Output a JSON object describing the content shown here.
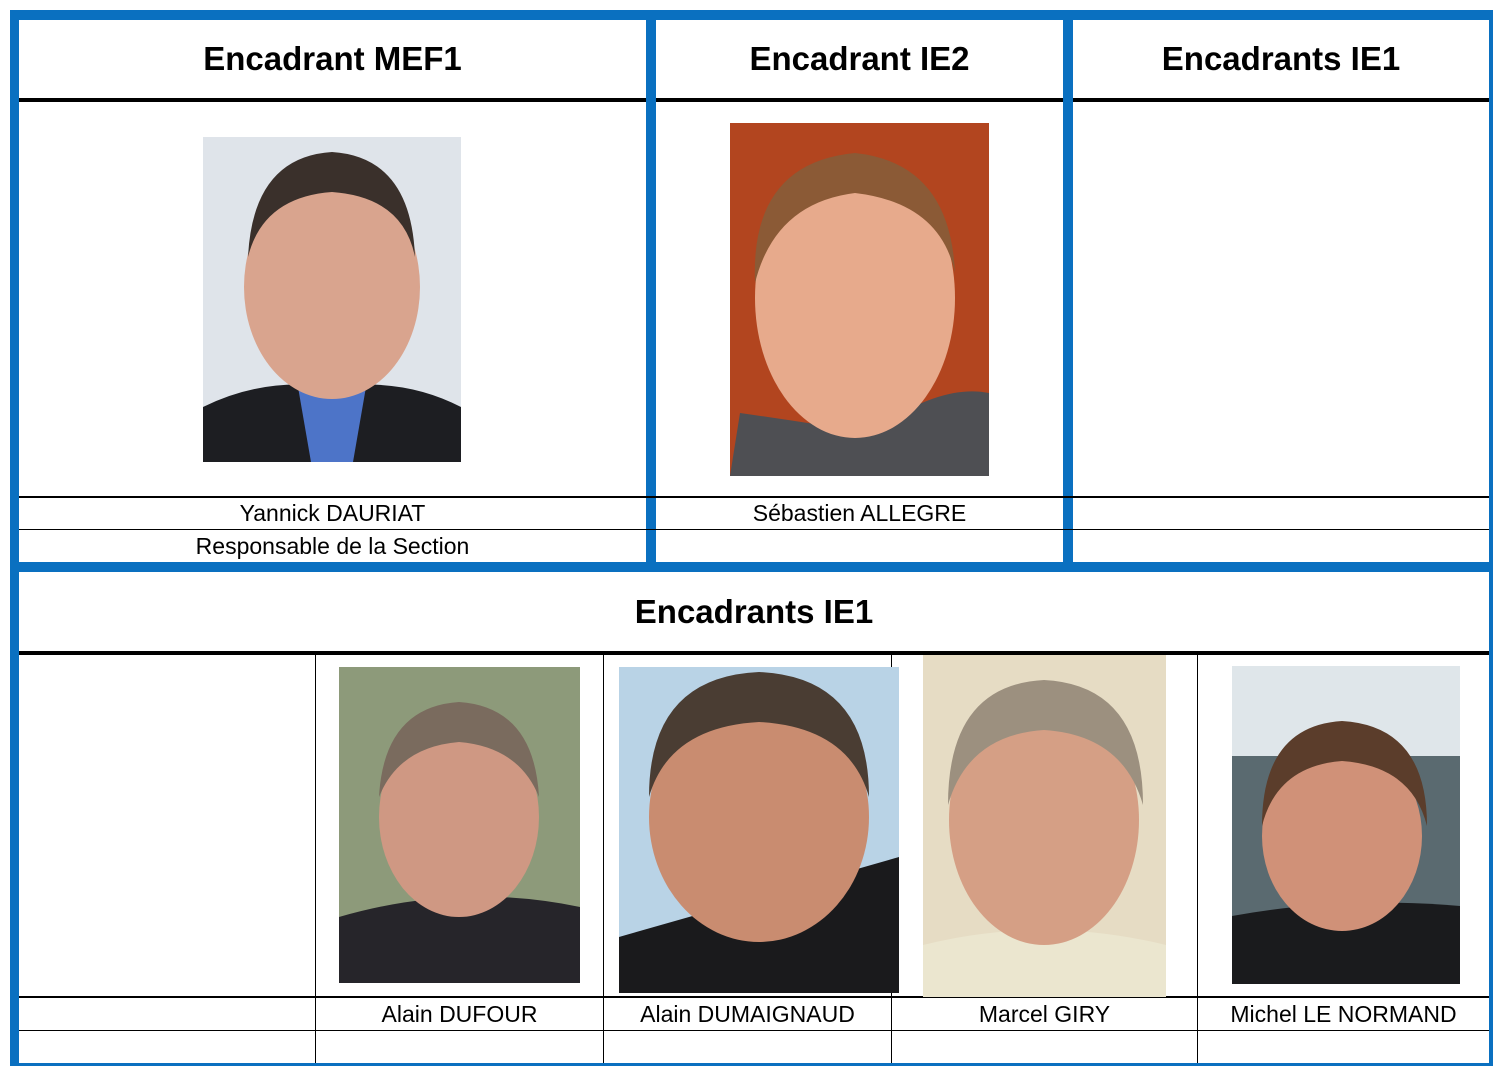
{
  "top": {
    "columns": [
      {
        "title": "Encadrant MEF1",
        "name": "Yannick DAURIAT",
        "role": "Responsable de la Section"
      },
      {
        "title": "Encadrant IE2",
        "name": "Sébastien ALLEGRE"
      },
      {
        "title": "Encadrants IE1"
      }
    ]
  },
  "bottom": {
    "title": "Encadrants IE1",
    "people": [
      {
        "name": "Alain DUFOUR"
      },
      {
        "name": "Alain DUMAIGNAUD"
      },
      {
        "name": "Marcel GIRY"
      },
      {
        "name": "Michel LE NORMAND"
      }
    ]
  }
}
